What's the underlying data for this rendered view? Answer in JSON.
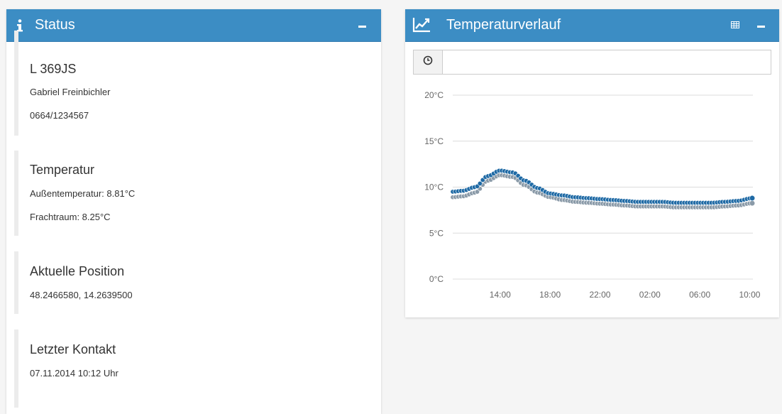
{
  "status_panel": {
    "title": "Status",
    "icons": {
      "header": "info-icon",
      "collapse": "minus-icon"
    },
    "vehicle": {
      "plate": "L 369JS",
      "driver": "Gabriel Freinbichler",
      "phone": "0664/1234567"
    },
    "temperature": {
      "heading": "Temperatur",
      "outside": "Außentemperatur: 8.81°C",
      "cargo": "Frachtraum: 8.25°C"
    },
    "position": {
      "heading": "Aktuelle Position",
      "coords": "48.2466580, 14.2639500"
    },
    "last_contact": {
      "heading": "Letzter Kontakt",
      "datetime": "07.11.2014 10:12 Uhr"
    }
  },
  "temp_panel": {
    "title": "Temperaturverlauf",
    "icons": {
      "header": "line-chart-icon",
      "table": "table-icon",
      "collapse": "minus-icon",
      "clock": "clock-icon"
    },
    "range_input_value": ""
  },
  "colors": {
    "header": "#3c8dc4",
    "series_outside": "#1f6aa5",
    "series_cargo": "#8a9aa8"
  },
  "chart_data": {
    "type": "scatter",
    "title": "",
    "xlabel": "",
    "ylabel": "",
    "x_ticks": [
      "14:00",
      "18:00",
      "22:00",
      "02:00",
      "06:00",
      "10:00"
    ],
    "y_ticks": [
      "0°C",
      "5°C",
      "10°C",
      "15°C",
      "20°C"
    ],
    "ylim": [
      0,
      20
    ],
    "grid": true,
    "legend": "none",
    "x_hours": [
      10.2,
      11,
      12,
      13,
      14,
      15,
      16,
      17,
      18,
      19,
      20,
      21,
      22,
      23,
      24,
      25,
      26,
      27,
      28,
      29,
      30,
      31,
      32,
      33,
      34.2
    ],
    "series": [
      {
        "values": [
          9.5,
          9.6,
          10.0,
          11.2,
          11.8,
          11.6,
          10.7,
          9.9,
          9.3,
          9.1,
          8.9,
          8.8,
          8.7,
          8.6,
          8.5,
          8.4,
          8.4,
          8.4,
          8.3,
          8.3,
          8.3,
          8.3,
          8.4,
          8.5,
          8.8
        ]
      },
      {
        "values": [
          8.9,
          9.0,
          9.4,
          10.7,
          11.3,
          11.1,
          10.2,
          9.4,
          8.9,
          8.6,
          8.4,
          8.3,
          8.2,
          8.1,
          8.0,
          7.9,
          7.9,
          7.9,
          7.8,
          7.8,
          7.8,
          7.8,
          7.9,
          8.0,
          8.25
        ]
      }
    ]
  }
}
